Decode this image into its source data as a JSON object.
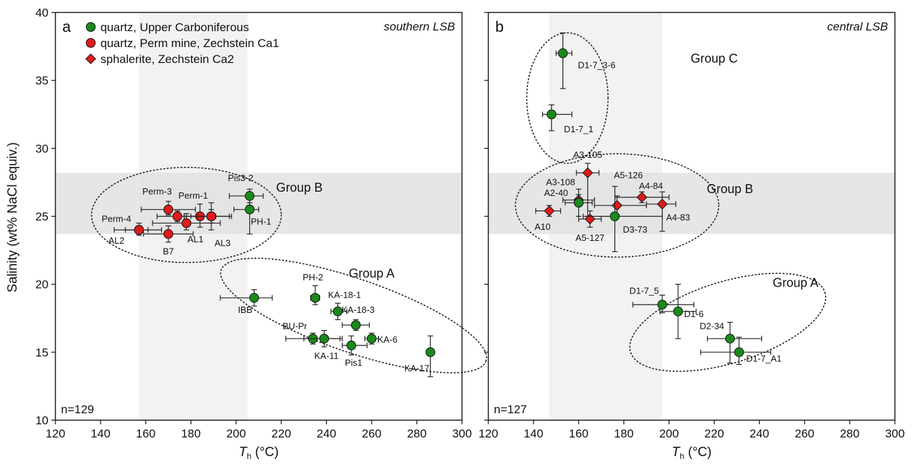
{
  "chart_data": [
    {
      "type": "scatter",
      "panel_letter": "a",
      "region": "southern LSB",
      "n_label": "n=129",
      "xlabel_main": "T",
      "xlabel_sub": "h",
      "xlabel_unit": " (°C)",
      "ylabel": "Salinity (wt% NaCl equiv.)",
      "xlim": [
        120,
        300
      ],
      "ylim": [
        10,
        40
      ],
      "xticks": [
        120,
        140,
        160,
        180,
        200,
        220,
        240,
        260,
        280,
        300
      ],
      "yticks": [
        10,
        15,
        20,
        25,
        30,
        35,
        40
      ],
      "grid": false,
      "legend": [
        {
          "label": "quartz, Upper Carboniferous",
          "marker": "circle",
          "color": "#1a8a1a"
        },
        {
          "label": "quartz, Perm mine, Zechstein Ca1",
          "marker": "circle",
          "color": "#e01b1b"
        },
        {
          "label": "sphalerite, Zechstein Ca2",
          "marker": "diamond",
          "color": "#e01b1b"
        }
      ],
      "shaded_x": [
        157,
        205
      ],
      "shaded_y": [
        23.7,
        28.2
      ],
      "groups": [
        {
          "label": "Group B",
          "cx": 178,
          "cy": 25.1,
          "rx": 42,
          "ry": 3.5,
          "rot_deg": 0,
          "label_x": 228,
          "label_y": 26.8
        },
        {
          "label": "Group A",
          "cx": 252,
          "cy": 17.7,
          "rx": 62,
          "ry": 2.7,
          "rot_deg": 19,
          "label_x": 260,
          "label_y": 20.5
        }
      ],
      "points": [
        {
          "label": "Pis3-2",
          "x": 206,
          "y": 26.5,
          "xmin": 197,
          "xmax": 212,
          "ymin": 25.8,
          "ymax": 27.0,
          "marker": "circle",
          "color": "#1a8a1a",
          "lx": 202,
          "ly": 27.6
        },
        {
          "label": "PH-1",
          "x": 206,
          "y": 25.5,
          "xmin": 199,
          "xmax": 210,
          "ymin": 23.7,
          "ymax": 26.0,
          "marker": "circle",
          "color": "#1a8a1a",
          "lx": 211,
          "ly": 24.4
        },
        {
          "label": "Perm-3",
          "x": 170,
          "y": 25.5,
          "xmin": 158,
          "xmax": 182,
          "ymin": 25.1,
          "ymax": 26.1,
          "marker": "circle",
          "color": "#e01b1b",
          "lx": 165,
          "ly": 26.6
        },
        {
          "label": "Perm-1",
          "x": 184,
          "y": 25.0,
          "xmin": 177,
          "xmax": 191,
          "ymin": 24.2,
          "ymax": 25.9,
          "marker": "circle",
          "color": "#e01b1b",
          "lx": 181,
          "ly": 26.3
        },
        {
          "label": "",
          "x": 174,
          "y": 25.0,
          "xmin": 165,
          "xmax": 183,
          "ymin": 24.6,
          "ymax": 25.4,
          "marker": "circle",
          "color": "#e01b1b",
          "lx": 0,
          "ly": 0
        },
        {
          "label": "",
          "x": 189,
          "y": 25.0,
          "xmin": 180,
          "xmax": 198,
          "ymin": 24.5,
          "ymax": 25.5,
          "marker": "circle",
          "color": "#e01b1b",
          "lx": 0,
          "ly": 0
        },
        {
          "label": "AL1",
          "x": 178,
          "y": 24.5,
          "xmin": 163,
          "xmax": 193,
          "ymin": 24.0,
          "ymax": 25.2,
          "marker": "circle",
          "color": "#e01b1b",
          "lx": 182,
          "ly": 23.1
        },
        {
          "label": "AL3",
          "x": 189,
          "y": 25.0,
          "xmin": 177,
          "xmax": 197,
          "ymin": 24.0,
          "ymax": 26.0,
          "marker": "circle",
          "color": "#e01b1b",
          "lx": 194,
          "ly": 22.8
        },
        {
          "label": "Perm-4",
          "x": 157,
          "y": 24.0,
          "xmin": 146,
          "xmax": 167,
          "ymin": 23.6,
          "ymax": 24.5,
          "marker": "circle",
          "color": "#e01b1b",
          "lx": 147,
          "ly": 24.6
        },
        {
          "label": "AL2",
          "x": 157,
          "y": 24.0,
          "xmin": 151,
          "xmax": 161,
          "ymin": 23.7,
          "ymax": 24.3,
          "marker": "circle",
          "color": "#e01b1b",
          "lx": 147,
          "ly": 23.0
        },
        {
          "label": "B7",
          "x": 170,
          "y": 23.7,
          "xmin": 159,
          "xmax": 181,
          "ymin": 23.1,
          "ymax": 24.3,
          "marker": "circle",
          "color": "#e01b1b",
          "lx": 170,
          "ly": 22.2
        },
        {
          "label": "IBB",
          "x": 208,
          "y": 19.0,
          "xmin": 193,
          "xmax": 216,
          "ymin": 18.4,
          "ymax": 19.6,
          "marker": "circle",
          "color": "#1a8a1a",
          "lx": 204,
          "ly": 17.9
        },
        {
          "label": "PH-2",
          "x": 235,
          "y": 19.0,
          "xmin": 233,
          "xmax": 237,
          "ymin": 18.5,
          "ymax": 19.9,
          "marker": "circle",
          "color": "#1a8a1a",
          "lx": 234,
          "ly": 20.3
        },
        {
          "label": "KA-18-1",
          "x": 245,
          "y": 18.0,
          "xmin": 242,
          "xmax": 249,
          "ymin": 17.4,
          "ymax": 18.6,
          "marker": "circle",
          "color": "#1a8a1a",
          "lx": 248,
          "ly": 19.0
        },
        {
          "label": "KA-18-3",
          "x": 253,
          "y": 17.0,
          "xmin": 247,
          "xmax": 259,
          "ymin": 16.6,
          "ymax": 17.4,
          "marker": "circle",
          "color": "#1a8a1a",
          "lx": 254,
          "ly": 17.9
        },
        {
          "label": "BU-Pr",
          "x": 234,
          "y": 16.0,
          "xmin": 222,
          "xmax": 246,
          "ymin": 15.6,
          "ymax": 16.4,
          "marker": "circle",
          "color": "#1a8a1a",
          "lx": 226,
          "ly": 16.7
        },
        {
          "label": "KA-11",
          "x": 239,
          "y": 16.0,
          "xmin": 230,
          "xmax": 247,
          "ymin": 15.4,
          "ymax": 16.6,
          "marker": "circle",
          "color": "#1a8a1a",
          "lx": 240,
          "ly": 14.5
        },
        {
          "label": "Pis1",
          "x": 251,
          "y": 15.5,
          "xmin": 247,
          "xmax": 258,
          "ymin": 14.8,
          "ymax": 16.2,
          "marker": "circle",
          "color": "#1a8a1a",
          "lx": 252,
          "ly": 14.0
        },
        {
          "label": "KA-6",
          "x": 260,
          "y": 16.0,
          "xmin": 257,
          "xmax": 263,
          "ymin": 15.6,
          "ymax": 16.4,
          "marker": "circle",
          "color": "#1a8a1a",
          "lx": 267,
          "ly": 15.7
        },
        {
          "label": "KA-17",
          "x": 286,
          "y": 15.0,
          "xmin": 286,
          "xmax": 286,
          "ymin": 13.2,
          "ymax": 16.2,
          "marker": "circle",
          "color": "#1a8a1a",
          "lx": 280,
          "ly": 13.6
        }
      ]
    },
    {
      "type": "scatter",
      "panel_letter": "b",
      "region": "central LSB",
      "n_label": "n=127",
      "xlabel_main": "T",
      "xlabel_sub": "h",
      "xlabel_unit": " (°C)",
      "ylabel": "",
      "xlim": [
        120,
        300
      ],
      "ylim": [
        10,
        40
      ],
      "xticks": [
        120,
        140,
        160,
        180,
        200,
        220,
        240,
        260,
        280,
        300
      ],
      "yticks": [
        10,
        15,
        20,
        25,
        30,
        35,
        40
      ],
      "grid": false,
      "shaded_x": [
        147,
        197
      ],
      "shaded_y": [
        23.7,
        28.2
      ],
      "groups": [
        {
          "label": "Group C",
          "cx": 155,
          "cy": 33.7,
          "rx": 18,
          "ry": 4.8,
          "rot_deg": 0,
          "label_x": 220,
          "label_y": 36.3
        },
        {
          "label": "Group B",
          "cx": 177,
          "cy": 25.8,
          "rx": 45,
          "ry": 3.8,
          "rot_deg": 0,
          "label_x": 227,
          "label_y": 26.7
        },
        {
          "label": "Group A",
          "cx": 226,
          "cy": 17.2,
          "rx": 45,
          "ry": 3.0,
          "rot_deg": -17,
          "label_x": 256,
          "label_y": 19.8
        }
      ],
      "points": [
        {
          "label": "D1-7_3-6",
          "x": 153,
          "y": 37.0,
          "xmin": 150,
          "xmax": 157,
          "ymin": 34.4,
          "ymax": 38.5,
          "marker": "circle",
          "color": "#1a8a1a",
          "lx": 168,
          "ly": 35.9
        },
        {
          "label": "D1-7_1",
          "x": 148,
          "y": 32.5,
          "xmin": 144,
          "xmax": 157,
          "ymin": 31.3,
          "ymax": 33.2,
          "marker": "circle",
          "color": "#1a8a1a",
          "lx": 160,
          "ly": 31.2
        },
        {
          "label": "A3-105",
          "x": 164,
          "y": 28.2,
          "xmin": 159,
          "xmax": 169,
          "ymin": 25.0,
          "ymax": 28.9,
          "marker": "diamond",
          "color": "#e01b1b",
          "lx": 164,
          "ly": 29.3
        },
        {
          "label": "A3-108",
          "x": 160,
          "y": 26.2,
          "xmin": 153,
          "xmax": 167,
          "ymin": 25.8,
          "ymax": 26.6,
          "marker": "diamond",
          "color": "#e01b1b",
          "lx": 152,
          "ly": 27.3
        },
        {
          "label": "A2-40",
          "x": 160,
          "y": 26.0,
          "xmin": 154,
          "xmax": 166,
          "ymin": 25.0,
          "ymax": 27.0,
          "marker": "circle",
          "color": "#1a8a1a",
          "lx": 150,
          "ly": 26.5
        },
        {
          "label": "A5-126",
          "x": 177,
          "y": 25.8,
          "xmin": 167,
          "xmax": 190,
          "ymin": 25.1,
          "ymax": 26.5,
          "marker": "diamond",
          "color": "#e01b1b",
          "lx": 182,
          "ly": 27.8
        },
        {
          "label": "A4-84",
          "x": 188,
          "y": 26.4,
          "xmin": 176,
          "xmax": 200,
          "ymin": 26.0,
          "ymax": 26.8,
          "marker": "diamond",
          "color": "#e01b1b",
          "lx": 192,
          "ly": 27.0
        },
        {
          "label": "A4-83",
          "x": 197,
          "y": 25.9,
          "xmin": 190,
          "xmax": 203,
          "ymin": 23.9,
          "ymax": 26.8,
          "marker": "diamond",
          "color": "#e01b1b",
          "lx": 204,
          "ly": 24.7
        },
        {
          "label": "A10",
          "x": 147,
          "y": 25.4,
          "xmin": 141,
          "xmax": 152,
          "ymin": 25.0,
          "ymax": 25.8,
          "marker": "diamond",
          "color": "#e01b1b",
          "lx": 144,
          "ly": 24.0
        },
        {
          "label": "A5-127",
          "x": 165,
          "y": 24.8,
          "xmin": 160,
          "xmax": 170,
          "ymin": 24.2,
          "ymax": 25.4,
          "marker": "diamond",
          "color": "#e01b1b",
          "lx": 165,
          "ly": 23.2
        },
        {
          "label": "D3-73",
          "x": 176,
          "y": 25.0,
          "xmin": 162,
          "xmax": 197,
          "ymin": 22.4,
          "ymax": 27.2,
          "marker": "circle",
          "color": "#1a8a1a",
          "lx": 185,
          "ly": 23.8
        },
        {
          "label": "D1-7_5",
          "x": 197,
          "y": 18.5,
          "xmin": 184,
          "xmax": 211,
          "ymin": 17.9,
          "ymax": 19.2,
          "marker": "circle",
          "color": "#1a8a1a",
          "lx": 189,
          "ly": 19.3
        },
        {
          "label": "D1-6",
          "x": 204,
          "y": 18.0,
          "xmin": 196,
          "xmax": 212,
          "ymin": 16.0,
          "ymax": 20.0,
          "marker": "circle",
          "color": "#1a8a1a",
          "lx": 211,
          "ly": 17.6
        },
        {
          "label": "D2-34",
          "x": 227,
          "y": 16.0,
          "xmin": 217,
          "xmax": 241,
          "ymin": 14.2,
          "ymax": 17.2,
          "marker": "circle",
          "color": "#1a8a1a",
          "lx": 219,
          "ly": 16.7
        },
        {
          "label": "D1-7_A1",
          "x": 231,
          "y": 15.0,
          "xmin": 214,
          "xmax": 245,
          "ymin": 14.1,
          "ymax": 16.1,
          "marker": "circle",
          "color": "#1a8a1a",
          "lx": 242,
          "ly": 14.3
        }
      ]
    }
  ]
}
